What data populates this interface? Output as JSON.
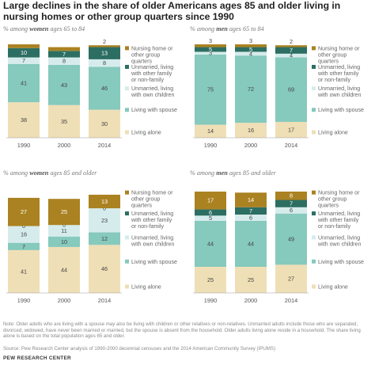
{
  "title": "Large declines in the share of older Americans ages 85 and older living in nursing homes or other group quarters since 1990",
  "colors": {
    "Nursing home or other group quarters": "#ab8221",
    "Unmarried, living with other family or non-family": "#2c6e62",
    "Unmarried, living with own children": "#d6ecec",
    "Living with spouse": "#86c9bd",
    "Living alone": "#efdfb6"
  },
  "chart_data": [
    {
      "type": "bar",
      "stacked": true,
      "title_parts": [
        "% among ",
        "women",
        " ages 65 to 84"
      ],
      "categories": [
        "1990",
        "2000",
        "2014"
      ],
      "series": [
        {
          "name": "Living alone",
          "values": [
            38,
            35,
            30
          ]
        },
        {
          "name": "Living with spouse",
          "values": [
            41,
            43,
            46
          ]
        },
        {
          "name": "Unmarried, living with own children",
          "values": [
            7,
            8,
            8
          ]
        },
        {
          "name": "Unmarried, living with other family or non-family",
          "values": [
            10,
            7,
            13
          ]
        },
        {
          "name": "Nursing home or other group quarters",
          "values": [
            4,
            4,
            2
          ]
        }
      ],
      "ylim": [
        0,
        100
      ],
      "legend": [
        "Nursing home or other group quarters",
        "Unmarried, living with other family or non-family",
        "Unmarried, living with own children",
        "Living with spouse",
        "Living alone"
      ]
    },
    {
      "type": "bar",
      "stacked": true,
      "title_parts": [
        "% among ",
        "men",
        " ages 65 to 84"
      ],
      "categories": [
        "1990",
        "2000",
        "2014"
      ],
      "series": [
        {
          "name": "Living alone",
          "values": [
            14,
            16,
            17
          ]
        },
        {
          "name": "Living with spouse",
          "values": [
            75,
            72,
            69
          ]
        },
        {
          "name": "Unmarried, living with own children",
          "values": [
            3,
            4,
            4
          ]
        },
        {
          "name": "Unmarried, living with other family or non-family",
          "values": [
            5,
            5,
            7
          ]
        },
        {
          "name": "Nursing home or other group quarters",
          "values": [
            3,
            3,
            2
          ]
        }
      ],
      "ylim": [
        0,
        100
      ],
      "legend": [
        "Nursing home or other group quarters",
        "Unmarried, living with other family or non-family",
        "Unmarried, living with own children",
        "Living with spouse",
        "Living alone"
      ]
    },
    {
      "type": "bar",
      "stacked": true,
      "title_parts": [
        "% among ",
        "women",
        " ages 85 and older"
      ],
      "categories": [
        "1990",
        "2000",
        "2014"
      ],
      "series": [
        {
          "name": "Living alone",
          "values": [
            41,
            44,
            46
          ]
        },
        {
          "name": "Living with spouse",
          "values": [
            7,
            10,
            12
          ]
        },
        {
          "name": "Unmarried, living with own children",
          "values": [
            16,
            11,
            23
          ]
        },
        {
          "name": "Unmarried, living with other family or non-family",
          "values": [
            0,
            0,
            0
          ]
        },
        {
          "name": "Nursing home or other group quarters",
          "values": [
            27,
            25,
            13
          ]
        }
      ],
      "ylim": [
        0,
        100
      ],
      "legend": [
        "Nursing home or other group quarters",
        "Unmarried, living with other family or non-family",
        "Unmarried, living with own children",
        "Living with spouse",
        "Living alone"
      ]
    },
    {
      "type": "bar",
      "stacked": true,
      "title_parts": [
        "% among ",
        "men",
        " ages 85 and older"
      ],
      "categories": [
        "1990",
        "2000",
        "2014"
      ],
      "series": [
        {
          "name": "Living alone",
          "values": [
            25,
            25,
            27
          ]
        },
        {
          "name": "Living with spouse",
          "values": [
            44,
            44,
            49
          ]
        },
        {
          "name": "Unmarried, living with own children",
          "values": [
            5,
            6,
            6
          ]
        },
        {
          "name": "Unmarried, living with other family or non-family",
          "values": [
            6,
            7,
            7
          ]
        },
        {
          "name": "Nursing home or other group quarters",
          "values": [
            17,
            14,
            8
          ]
        }
      ],
      "ylim": [
        0,
        100
      ],
      "legend": [
        "Nursing home or other group quarters",
        "Unmarried, living with other family or non-family",
        "Unmarried, living with own children",
        "Living with spouse",
        "Living alone"
      ]
    }
  ],
  "note": "Note: Older adults who are living with a spouse may also be living with children or other relatives or non-relatives. Unmarried adults include those who are separated, divorced, widowed, have never been married or married, but the spouse is absent from the household. Older adults living alone reside in a household. The share living alone is based on the total population ages 65 and older.",
  "source": "Source: Pew Research Center analysis of 1990-2000 decennial censuses and the 2014 American Community Survey (IPUMS)",
  "org": "PEW RESEARCH CENTER"
}
